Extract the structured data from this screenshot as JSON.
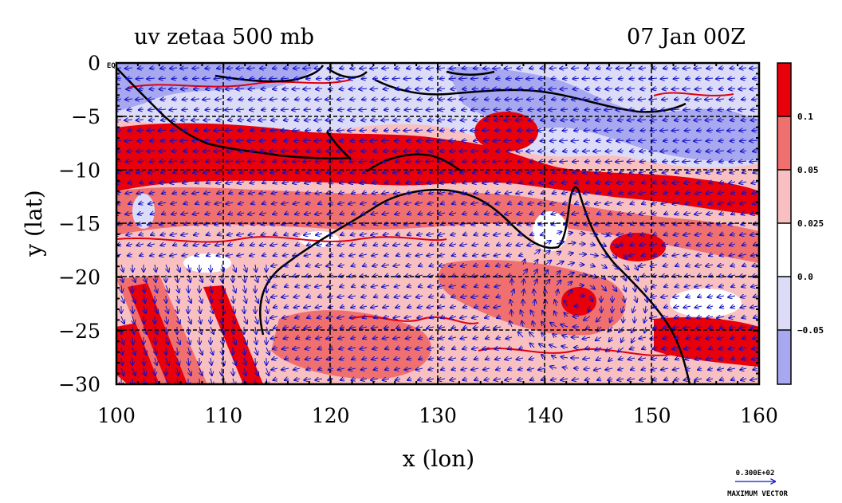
{
  "chart_data": {
    "type": "heatmap",
    "title_left": "uv zetaa 500 mb",
    "title_right": "07 Jan 00Z",
    "xlabel": "x (lon)",
    "ylabel": "y (lat)",
    "xlim": [
      100,
      160
    ],
    "ylim": [
      -30,
      0
    ],
    "x_ticks": [
      "100",
      "110",
      "120",
      "130",
      "140",
      "150",
      "160"
    ],
    "y_ticks": [
      "0",
      "−5",
      "−10",
      "−15",
      "−20",
      "−25",
      "−30"
    ],
    "y_tick_values": [
      0,
      -5,
      -10,
      -15,
      -20,
      -25,
      -30
    ],
    "x_tick_values": [
      100,
      110,
      120,
      130,
      140,
      150,
      160
    ],
    "corner_label": "EQ",
    "grid": true,
    "colorbar": {
      "ticks": [
        "0.1",
        "0.05",
        "0.025",
        "0.0",
        "−0.05"
      ],
      "levels": [
        {
          "range": "> 0.1",
          "color": "#e8000b"
        },
        {
          "range": "0.05 to 0.1",
          "color": "#f07070"
        },
        {
          "range": "0.025 to 0.05",
          "color": "#f8c0c0"
        },
        {
          "range": "0.0 to 0.025",
          "color": "#ffffff"
        },
        {
          "range": "-0.05 to 0.0",
          "color": "#dcdcf8"
        },
        {
          "range": "< -0.05",
          "color": "#a8a8f0"
        }
      ]
    },
    "vector_legend": {
      "value": "0.300E+02",
      "label": "MAXIMUM VECTOR",
      "color": "#1010c8"
    },
    "regions": [
      {
        "name": "northern band",
        "lat": [
          -7,
          0
        ],
        "lon": [
          100,
          160
        ],
        "dominant": "negative (blue)"
      },
      {
        "name": "tropical band",
        "lat": [
          -12,
          -7
        ],
        "lon": [
          100,
          160
        ],
        "dominant": "> 0.1 (red)"
      },
      {
        "name": "southern domain",
        "lat": [
          -30,
          -12
        ],
        "lon": [
          100,
          160
        ],
        "dominant": "0.025 to 0.1 (pink)"
      },
      {
        "name": "vortex centre",
        "lat": [
          -22,
          -21
        ],
        "lon": [
          142,
          144
        ],
        "dominant": "> 0.1 (red)"
      }
    ]
  }
}
